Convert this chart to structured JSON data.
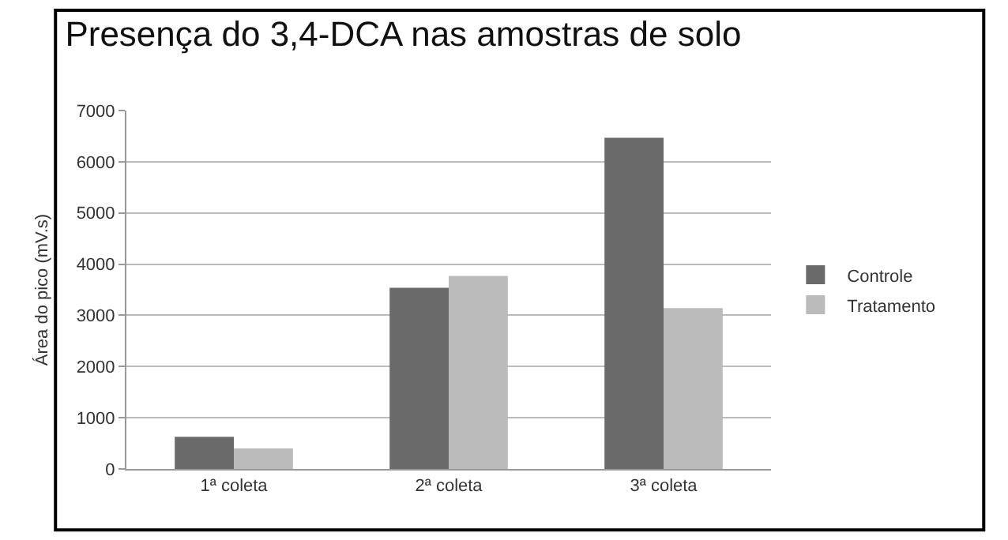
{
  "chart_data": {
    "type": "bar",
    "title": "Presença do 3,4-DCA nas amostras de solo",
    "ylabel": "Área do pico (mV.s)",
    "categories": [
      "1ª coleta",
      "2ª coleta",
      "3ª coleta"
    ],
    "series": [
      {
        "name": "Controle",
        "color": "#6a6a6a",
        "values": [
          630,
          3540,
          6470
        ]
      },
      {
        "name": "Tratamento",
        "color": "#bbbbbb",
        "values": [
          400,
          3770,
          3140
        ]
      }
    ],
    "ylim": [
      0,
      7000
    ],
    "yticks": [
      0,
      1000,
      2000,
      3000,
      4000,
      5000,
      6000,
      7000
    ],
    "grid": "y",
    "legend": "right"
  }
}
